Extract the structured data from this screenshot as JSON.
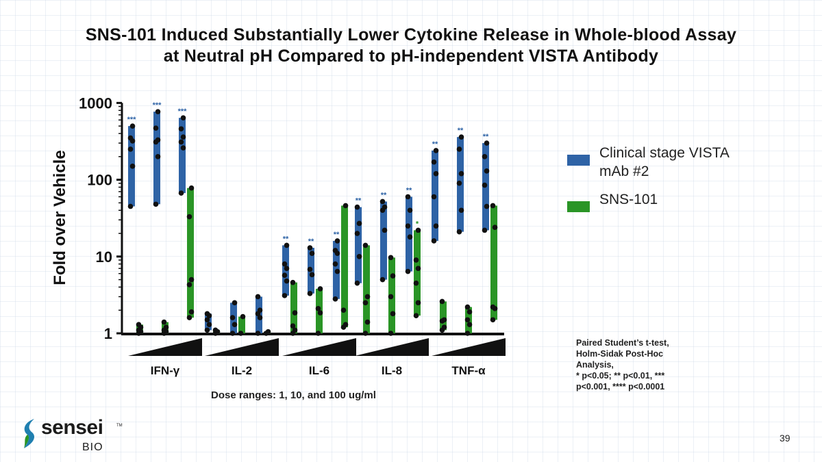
{
  "title": {
    "line1": "SNS-101 Induced Substantially Lower Cytokine Release in Whole-blood Assay",
    "line2": "at Neutral pH Compared to pH-independent VISTA Antibody"
  },
  "colors": {
    "vista": "#2e63a6",
    "sns": "#2a9526",
    "point": "#111111",
    "axis": "#111111"
  },
  "chart_data": {
    "type": "floating-bar-with-points",
    "yscale": "log",
    "ylim": [
      1,
      1000
    ],
    "ylabel": "Fold over Vehicle",
    "yticks": [
      "1",
      "10",
      "100",
      "1000"
    ],
    "xlabel_note": "Dose ranges: 1, 10, and 100 ug/ml",
    "dose_levels": [
      1,
      10,
      100
    ],
    "series_names": [
      "Clinical stage VISTA mAb #2",
      "SNS-101"
    ],
    "cytokines": [
      {
        "name": "IFN-γ",
        "vista": [
          {
            "dose": 1,
            "min": 45,
            "max": 500,
            "sig": "***",
            "points": [
              45,
              150,
              250,
              320,
              350,
              500
            ]
          },
          {
            "dose": 10,
            "min": 48,
            "max": 770,
            "sig": "***",
            "points": [
              48,
              200,
              310,
              330,
              470,
              770
            ]
          },
          {
            "dose": 100,
            "min": 67,
            "max": 640,
            "sig": "***",
            "points": [
              67,
              260,
              310,
              360,
              460,
              640
            ]
          }
        ],
        "sns": [
          {
            "dose": 1,
            "min": 1.0,
            "max": 1.3,
            "sig": "",
            "points": [
              1.0,
              1.05,
              1.1,
              1.2,
              1.3
            ]
          },
          {
            "dose": 10,
            "min": 1.0,
            "max": 1.4,
            "sig": "",
            "points": [
              1.0,
              1.05,
              1.1,
              1.2,
              1.4
            ]
          },
          {
            "dose": 100,
            "min": 1.6,
            "max": 78,
            "sig": "",
            "points": [
              1.6,
              1.9,
              4.3,
              5.0,
              33,
              78
            ]
          }
        ]
      },
      {
        "name": "IL-2",
        "vista": [
          {
            "dose": 1,
            "min": 1.1,
            "max": 1.8,
            "sig": "",
            "points": [
              1.1,
              1.3,
              1.5,
              1.7,
              1.8
            ]
          },
          {
            "dose": 10,
            "min": 1.0,
            "max": 2.5,
            "sig": "",
            "points": [
              1.0,
              1.3,
              1.6,
              2.5
            ]
          },
          {
            "dose": 100,
            "min": 1.0,
            "max": 3.0,
            "sig": "",
            "points": [
              1.0,
              1.6,
              1.8,
              2.0,
              3.0
            ]
          }
        ],
        "sns": [
          {
            "dose": 1,
            "min": 1.0,
            "max": 1.1,
            "sig": "",
            "points": [
              1.0,
              1.05,
              1.1
            ]
          },
          {
            "dose": 10,
            "min": 1.0,
            "max": 1.65,
            "sig": "",
            "points": [
              1.0,
              1.65
            ]
          },
          {
            "dose": 100,
            "min": 1.0,
            "max": 1.05,
            "sig": "",
            "points": [
              1.0,
              1.05
            ]
          }
        ]
      },
      {
        "name": "IL-6",
        "vista": [
          {
            "dose": 1,
            "min": 3.1,
            "max": 14,
            "sig": "**",
            "points": [
              3.1,
              4.8,
              5.7,
              7.0,
              8.0,
              14
            ]
          },
          {
            "dose": 10,
            "min": 3.3,
            "max": 13,
            "sig": "**",
            "points": [
              3.3,
              5.8,
              6.8,
              11,
              13
            ]
          },
          {
            "dose": 100,
            "min": 2.8,
            "max": 16,
            "sig": "**",
            "points": [
              2.8,
              6.4,
              8.0,
              11,
              12,
              16
            ]
          }
        ],
        "sns": [
          {
            "dose": 1,
            "min": 1.0,
            "max": 4.6,
            "sig": "",
            "points": [
              1.0,
              1.1,
              1.25,
              1.85,
              4.6
            ]
          },
          {
            "dose": 10,
            "min": 1.0,
            "max": 3.8,
            "sig": "",
            "points": [
              1.0,
              1.85,
              2.1,
              3.8
            ]
          },
          {
            "dose": 100,
            "min": 1.2,
            "max": 46,
            "sig": "",
            "points": [
              1.2,
              1.3,
              2.0,
              46
            ]
          }
        ]
      },
      {
        "name": "IL-8",
        "vista": [
          {
            "dose": 1,
            "min": 4.5,
            "max": 44,
            "sig": "**",
            "points": [
              4.5,
              10,
              20,
              27,
              44
            ]
          },
          {
            "dose": 10,
            "min": 5.0,
            "max": 52,
            "sig": "**",
            "points": [
              5.0,
              22,
              40,
              44,
              52
            ]
          },
          {
            "dose": 100,
            "min": 6.4,
            "max": 60,
            "sig": "**",
            "points": [
              6.4,
              18,
              25,
              40,
              60
            ]
          }
        ],
        "sns": [
          {
            "dose": 1,
            "min": 1.0,
            "max": 14,
            "sig": "",
            "points": [
              1.0,
              1.4,
              2.5,
              3.0,
              14
            ]
          },
          {
            "dose": 10,
            "min": 1.0,
            "max": 9.7,
            "sig": "",
            "points": [
              1.0,
              1.8,
              3.0,
              5.6,
              9.7
            ]
          },
          {
            "dose": 100,
            "min": 1.7,
            "max": 22,
            "sig": "*",
            "points": [
              1.7,
              2.5,
              4.5,
              7.0,
              9.0,
              22
            ]
          }
        ]
      },
      {
        "name": "TNF-α",
        "vista": [
          {
            "dose": 1,
            "min": 16,
            "max": 240,
            "sig": "**",
            "points": [
              16,
              25,
              60,
              120,
              170,
              240
            ]
          },
          {
            "dose": 10,
            "min": 21,
            "max": 360,
            "sig": "**",
            "points": [
              21,
              40,
              90,
              120,
              250,
              360
            ]
          },
          {
            "dose": 100,
            "min": 22,
            "max": 300,
            "sig": "**",
            "points": [
              22,
              45,
              85,
              130,
              200,
              300
            ]
          }
        ],
        "sns": [
          {
            "dose": 1,
            "min": 1.1,
            "max": 2.6,
            "sig": "",
            "points": [
              1.1,
              1.2,
              1.45,
              1.5,
              2.6
            ]
          },
          {
            "dose": 10,
            "min": 1.0,
            "max": 2.2,
            "sig": "",
            "points": [
              1.0,
              1.3,
              1.5,
              1.9,
              2.2
            ]
          },
          {
            "dose": 100,
            "min": 1.5,
            "max": 46,
            "sig": "",
            "points": [
              1.5,
              2.1,
              2.2,
              24,
              46
            ]
          }
        ]
      }
    ]
  },
  "legend": [
    {
      "label": "Clinical stage VISTA mAb #2",
      "color": "#2e63a6"
    },
    {
      "label": "SNS-101",
      "color": "#2a9526"
    }
  ],
  "stats": {
    "lines": [
      "Paired Student’s t-test,",
      "Holm-Sidak Post-Hoc",
      "Analysis,",
      "* p<0.05; ** p<0.01, ***",
      "p<0.001, **** p<0.0001"
    ]
  },
  "dose_note": "Dose ranges: 1, 10, and 100 ug/ml",
  "logo": {
    "word": "sensei",
    "sub": "BIO",
    "tm": "TM"
  },
  "page_number": "39"
}
